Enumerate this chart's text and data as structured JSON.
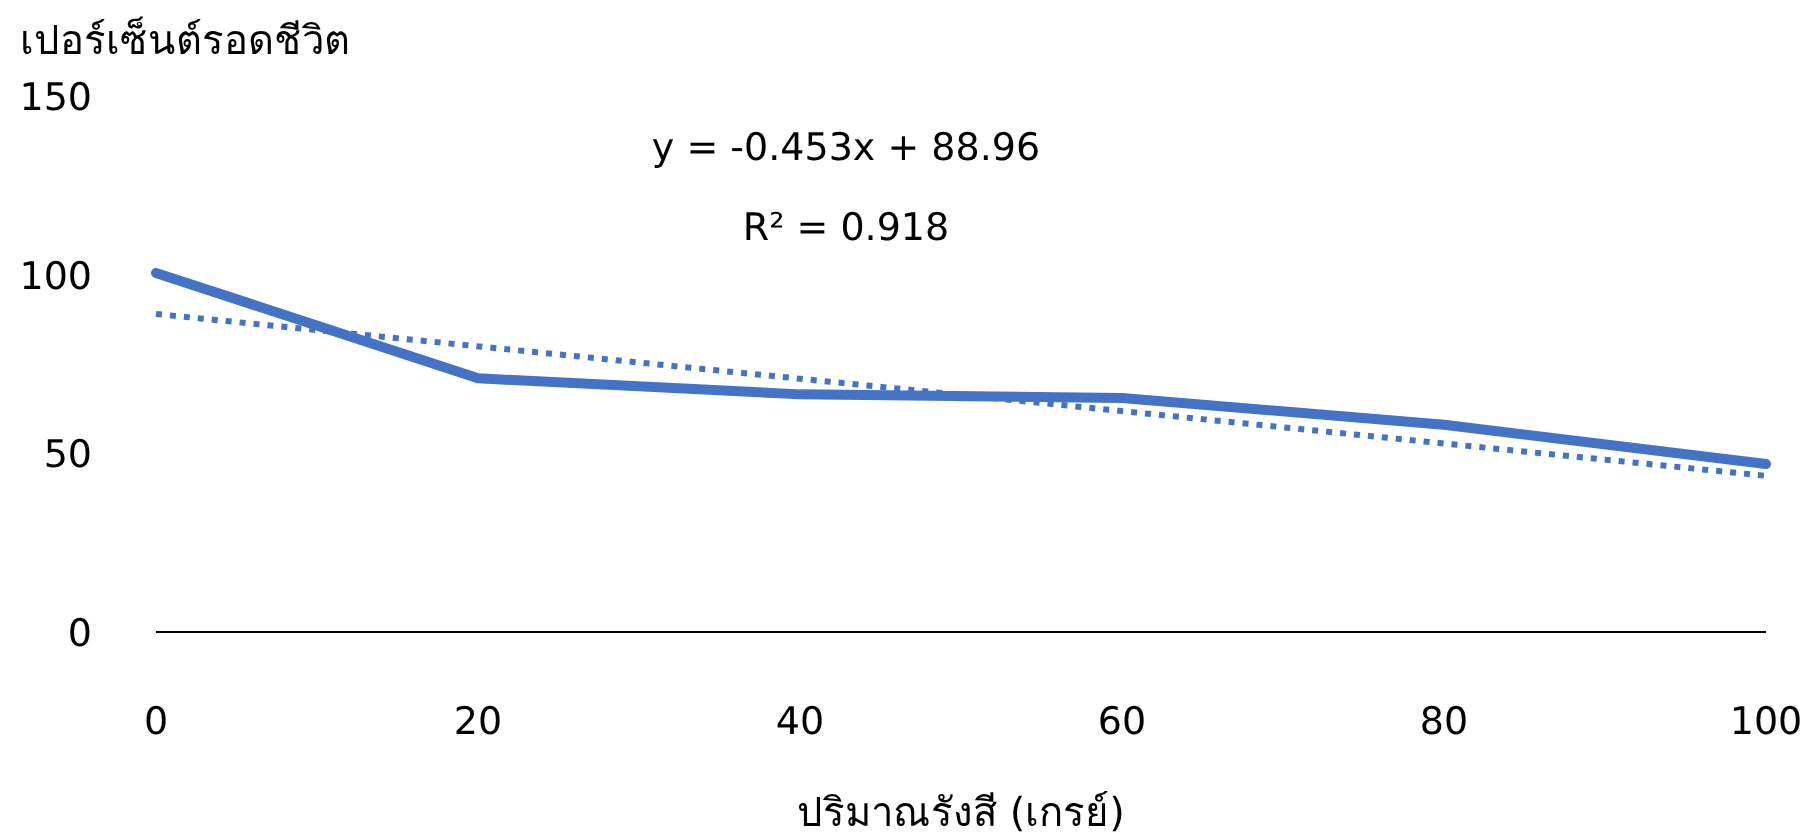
{
  "chart_data": {
    "type": "line",
    "ylabel": "เปอร์เซ็นต์รอดชีวิต",
    "xlabel": "ปริมาณรังสี (เกรย์)",
    "x": [
      0,
      20,
      40,
      60,
      80,
      100
    ],
    "series": [
      {
        "color": "#4472c4",
        "values": [
          100.5,
          71,
          66.5,
          65.5,
          58,
          47
        ],
        "line_style": "solid"
      },
      {
        "type": "line",
        "color": "#4472c4",
        "x": [
          0,
          100
        ],
        "values": [
          89,
          43.7
        ],
        "line_style": "dotted"
      }
    ],
    "xlim": [
      0,
      100
    ],
    "ylim": [
      0,
      150
    ],
    "xticks": [
      0,
      20,
      40,
      60,
      80,
      100
    ],
    "yticks": [
      0,
      50,
      100,
      150
    ],
    "annotations": [
      "y = -0.453x + 88.96",
      "R² = 0.918"
    ],
    "grid": false
  }
}
